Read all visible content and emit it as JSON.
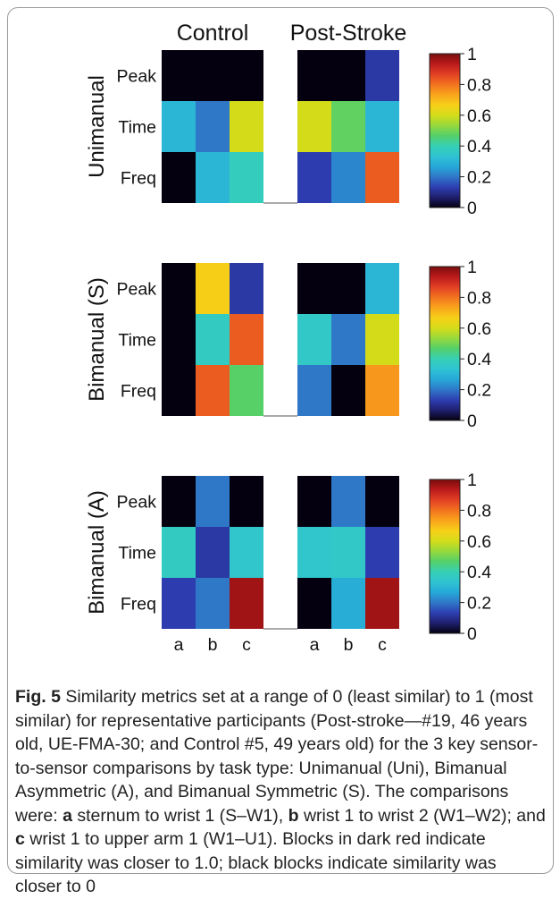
{
  "chart_data": {
    "type": "heatmap",
    "group_titles": [
      "Control",
      "Post-Stroke"
    ],
    "columns": [
      "a",
      "b",
      "c"
    ],
    "rows": [
      "Peak",
      "Time",
      "Freq"
    ],
    "value_range": [
      0,
      1
    ],
    "colorbar_ticks": [
      "0",
      "0.2",
      "0.4",
      "0.6",
      "0.8",
      "1"
    ],
    "colorbar_tick_values": [
      0,
      0.2,
      0.4,
      0.6,
      0.8,
      1
    ],
    "colormap": [
      "#04000f",
      "#1f1f6e",
      "#2e3fb2",
      "#2f78c8",
      "#26a8d8",
      "#2fc3d3",
      "#36d0b4",
      "#54d06a",
      "#97d93d",
      "#d4dc1a",
      "#f6d018",
      "#f9a41c",
      "#f2731f",
      "#e24024",
      "#bb1a1c",
      "#7a0c0c"
    ],
    "panels": [
      {
        "label": "Unimanual",
        "control": [
          [
            0.0,
            0.0,
            0.0
          ],
          [
            0.3,
            0.2,
            0.6
          ],
          [
            0.0,
            0.3,
            0.38
          ]
        ],
        "post_stroke": [
          [
            0.0,
            0.0,
            0.12
          ],
          [
            0.6,
            0.48,
            0.3
          ],
          [
            0.13,
            0.22,
            0.83
          ]
        ]
      },
      {
        "label": "Bimanual (S)",
        "control": [
          [
            0.0,
            0.67,
            0.12
          ],
          [
            0.0,
            0.37,
            0.83
          ],
          [
            0.0,
            0.83,
            0.47
          ]
        ],
        "post_stroke": [
          [
            0.0,
            0.0,
            0.3
          ],
          [
            0.36,
            0.2,
            0.6
          ],
          [
            0.2,
            0.0,
            0.75
          ]
        ]
      },
      {
        "label": "Bimanual (A)",
        "control": [
          [
            0.0,
            0.2,
            0.0
          ],
          [
            0.37,
            0.12,
            0.35
          ],
          [
            0.13,
            0.2,
            0.96
          ]
        ],
        "post_stroke": [
          [
            0.0,
            0.2,
            0.0
          ],
          [
            0.35,
            0.36,
            0.13
          ],
          [
            0.0,
            0.28,
            0.96
          ]
        ]
      }
    ]
  },
  "caption": {
    "fig_label": "Fig. 5",
    "text_1": " Similarity metrics set at a range of 0 (least similar) to 1 (most similar) for representative participants (Post-stroke—#19, 46 years old, UE-FMA-30; and Control #5, 49 years old) for the 3 key sensor-to-sensor comparisons by task type: Unimanual (Uni), Bimanual Asymmetric (A), and Bimanual Symmetric (S). The comparisons were: ",
    "a_label": "a",
    "a_text": " sternum to wrist 1 (S–W1), ",
    "b_label": "b",
    "b_text": " wrist 1 to wrist 2 (W1–W2); and ",
    "c_label": "c",
    "c_text": " wrist 1 to upper arm 1 (W1–U1). Blocks in dark red indicate similarity was closer to 1.0; black blocks indicate similarity was closer to 0"
  }
}
